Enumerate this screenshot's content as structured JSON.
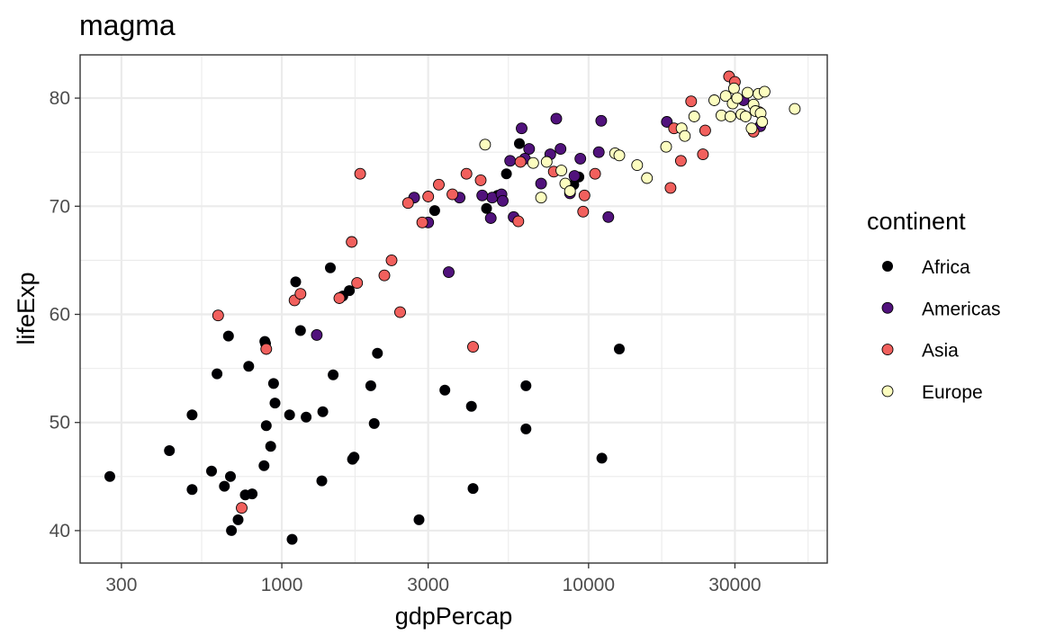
{
  "chart_data": {
    "type": "scatter",
    "title": "magma",
    "xlabel": "gdpPercap",
    "ylabel": "lifeExp",
    "x_scale": "log10",
    "xlim": [
      220,
      60000
    ],
    "ylim": [
      37,
      84
    ],
    "x_ticks": [
      300,
      1000,
      3000,
      10000,
      30000
    ],
    "x_tick_labels": [
      "300",
      "1000",
      "3000",
      "10000",
      "30000"
    ],
    "y_ticks": [
      40,
      50,
      60,
      70,
      80
    ],
    "y_tick_labels": [
      "40",
      "50",
      "60",
      "70",
      "80"
    ],
    "grid": true,
    "legend": {
      "title": "continent",
      "position": "right",
      "entries": [
        "Africa",
        "Americas",
        "Asia",
        "Europe"
      ]
    },
    "colors": {
      "Africa": "#000004",
      "Americas": "#51127C",
      "Asia": "#F1605D",
      "Europe": "#FCFDBF"
    },
    "series": [
      {
        "name": "Africa",
        "points": [
          [
            275,
            45.0
          ],
          [
            430,
            47.4
          ],
          [
            510,
            50.7
          ],
          [
            510,
            43.8
          ],
          [
            590,
            45.5
          ],
          [
            615,
            54.5
          ],
          [
            650,
            44.1
          ],
          [
            670,
            58.0
          ],
          [
            685,
            40.0
          ],
          [
            680,
            45.0
          ],
          [
            720,
            41.0
          ],
          [
            760,
            43.3
          ],
          [
            780,
            55.2
          ],
          [
            800,
            43.4
          ],
          [
            880,
            57.5
          ],
          [
            885,
            57.3
          ],
          [
            875,
            46.0
          ],
          [
            890,
            49.7
          ],
          [
            920,
            47.8
          ],
          [
            940,
            53.6
          ],
          [
            950,
            51.8
          ],
          [
            1060,
            50.7
          ],
          [
            1110,
            63.0
          ],
          [
            1080,
            39.2
          ],
          [
            1150,
            58.5
          ],
          [
            1200,
            50.5
          ],
          [
            1360,
            51.0
          ],
          [
            1350,
            44.6
          ],
          [
            1440,
            64.3
          ],
          [
            1470,
            54.4
          ],
          [
            1580,
            61.7
          ],
          [
            1660,
            62.2
          ],
          [
            1700,
            46.6
          ],
          [
            1720,
            46.8
          ],
          [
            1950,
            53.4
          ],
          [
            2000,
            49.9
          ],
          [
            2050,
            56.4
          ],
          [
            2800,
            41.0
          ],
          [
            3150,
            69.6
          ],
          [
            3400,
            53.0
          ],
          [
            4150,
            51.5
          ],
          [
            4200,
            43.9
          ],
          [
            4650,
            69.8
          ],
          [
            5050,
            71.0
          ],
          [
            5400,
            73.0
          ],
          [
            5950,
            75.8
          ],
          [
            6250,
            53.4
          ],
          [
            6250,
            49.4
          ],
          [
            8950,
            72.0
          ],
          [
            9300,
            72.7
          ],
          [
            11050,
            46.7
          ],
          [
            12600,
            56.8
          ]
        ]
      },
      {
        "name": "Americas",
        "points": [
          [
            1300,
            58.1
          ],
          [
            2700,
            70.8
          ],
          [
            3000,
            68.5
          ],
          [
            3500,
            63.9
          ],
          [
            3800,
            70.8
          ],
          [
            4800,
            68.9
          ],
          [
            4850,
            70.8
          ],
          [
            4500,
            71.0
          ],
          [
            5200,
            71.1
          ],
          [
            5250,
            70.5
          ],
          [
            5550,
            74.2
          ],
          [
            5700,
            69.0
          ],
          [
            6050,
            77.2
          ],
          [
            6400,
            75.3
          ],
          [
            6200,
            74.4
          ],
          [
            7000,
            72.1
          ],
          [
            7500,
            74.8
          ],
          [
            7850,
            78.1
          ],
          [
            8100,
            75.3
          ],
          [
            8700,
            71.2
          ],
          [
            9000,
            72.8
          ],
          [
            9400,
            74.4
          ],
          [
            10800,
            75.0
          ],
          [
            11000,
            77.9
          ],
          [
            11600,
            69.0
          ],
          [
            18000,
            77.8
          ],
          [
            32000,
            79.8
          ],
          [
            36300,
            77.4
          ]
        ]
      },
      {
        "name": "Asia",
        "points": [
          [
            620,
            59.9
          ],
          [
            740,
            42.1
          ],
          [
            890,
            56.8
          ],
          [
            1100,
            61.3
          ],
          [
            1150,
            61.9
          ],
          [
            1540,
            61.5
          ],
          [
            1690,
            66.7
          ],
          [
            1760,
            62.9
          ],
          [
            1800,
            73.0
          ],
          [
            2160,
            63.6
          ],
          [
            2280,
            65.0
          ],
          [
            2430,
            60.2
          ],
          [
            2580,
            70.3
          ],
          [
            2870,
            68.5
          ],
          [
            3000,
            70.9
          ],
          [
            3250,
            72.0
          ],
          [
            3600,
            71.1
          ],
          [
            4000,
            73.0
          ],
          [
            4200,
            57.0
          ],
          [
            4450,
            72.4
          ],
          [
            5900,
            68.6
          ],
          [
            6000,
            74.1
          ],
          [
            7700,
            73.2
          ],
          [
            9600,
            69.5
          ],
          [
            9700,
            71.0
          ],
          [
            10500,
            73.0
          ],
          [
            18500,
            71.7
          ],
          [
            19000,
            77.2
          ],
          [
            20000,
            74.2
          ],
          [
            21600,
            79.7
          ],
          [
            23600,
            74.8
          ],
          [
            24000,
            77.0
          ],
          [
            28700,
            82.0
          ],
          [
            30000,
            81.5
          ],
          [
            34500,
            76.9
          ],
          [
            36000,
            78.7
          ]
        ]
      },
      {
        "name": "Europe",
        "points": [
          [
            4600,
            75.7
          ],
          [
            6600,
            74.0
          ],
          [
            7000,
            70.8
          ],
          [
            7300,
            74.1
          ],
          [
            8150,
            73.3
          ],
          [
            8400,
            72.1
          ],
          [
            8700,
            71.4
          ],
          [
            12200,
            74.9
          ],
          [
            12600,
            74.7
          ],
          [
            14400,
            73.8
          ],
          [
            15500,
            72.6
          ],
          [
            17900,
            75.5
          ],
          [
            20100,
            77.2
          ],
          [
            20600,
            76.5
          ],
          [
            22100,
            78.3
          ],
          [
            25700,
            79.8
          ],
          [
            27100,
            78.4
          ],
          [
            28000,
            80.2
          ],
          [
            29000,
            78.3
          ],
          [
            29500,
            79.5
          ],
          [
            29800,
            80.9
          ],
          [
            30500,
            80.0
          ],
          [
            31500,
            78.5
          ],
          [
            32500,
            78.3
          ],
          [
            33000,
            80.5
          ],
          [
            34000,
            77.2
          ],
          [
            34500,
            79.4
          ],
          [
            35000,
            78.8
          ],
          [
            35800,
            80.4
          ],
          [
            36400,
            78.6
          ],
          [
            36800,
            77.8
          ],
          [
            37500,
            80.6
          ],
          [
            47000,
            79.0
          ]
        ]
      }
    ]
  }
}
